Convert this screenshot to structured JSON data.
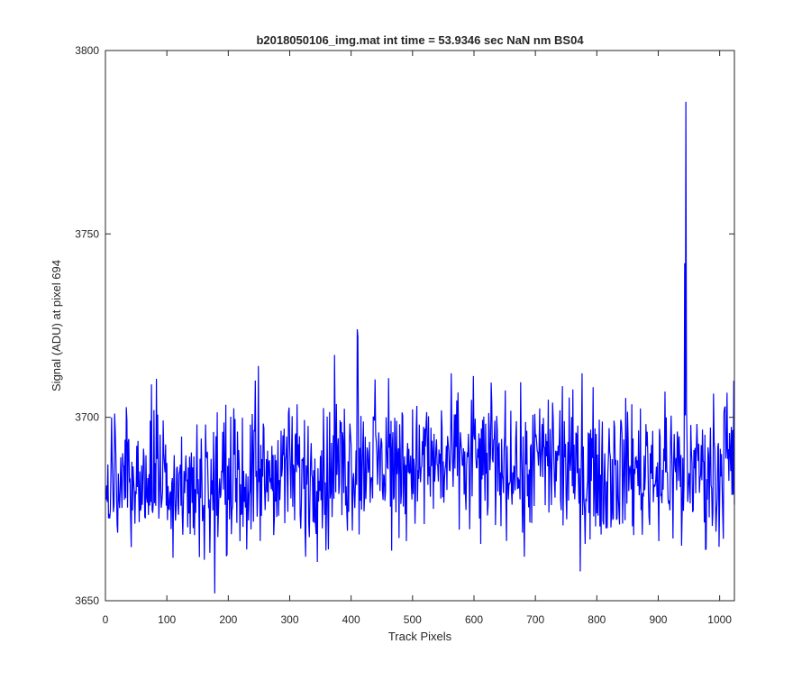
{
  "chart_data": {
    "type": "line",
    "title": "b2018050106_img.mat int time = 53.9346 sec  NaN nm BS04",
    "xlabel": "Track Pixels",
    "ylabel": "Signal (ADU) at pixel 694",
    "xlim": [
      0,
      1024
    ],
    "ylim": [
      3650,
      3800
    ],
    "xticks": [
      0,
      100,
      200,
      300,
      400,
      500,
      600,
      700,
      800,
      900,
      1000
    ],
    "yticks": [
      3650,
      3700,
      3750,
      3800
    ],
    "xtick_labels": [
      "0",
      "100",
      "200",
      "300",
      "400",
      "500",
      "600",
      "700",
      "800",
      "900",
      "1000"
    ],
    "ytick_labels": [
      "3650",
      "3700",
      "3750",
      "3800"
    ],
    "grid": false,
    "legend": "none",
    "series": [
      {
        "color": "#0000ff",
        "x_start": 1,
        "x_step": 1,
        "count": 1024,
        "baseline": [
          [
            1,
            3683
          ],
          [
            100,
            3683
          ],
          [
            200,
            3682
          ],
          [
            300,
            3684
          ],
          [
            400,
            3687
          ],
          [
            500,
            3688
          ],
          [
            600,
            3688
          ],
          [
            700,
            3687
          ],
          [
            800,
            3686
          ],
          [
            900,
            3686
          ],
          [
            1024,
            3686
          ]
        ],
        "noise_amplitude": 9,
        "features": [
          {
            "x": 75,
            "y": 3709
          },
          {
            "x": 178,
            "y": 3652
          },
          {
            "x": 249,
            "y": 3714
          },
          {
            "x": 326,
            "y": 3662
          },
          {
            "x": 363,
            "y": 3664
          },
          {
            "x": 373,
            "y": 3717
          },
          {
            "x": 410,
            "y": 3724
          },
          {
            "x": 411,
            "y": 3722
          },
          {
            "x": 682,
            "y": 3662
          },
          {
            "x": 943,
            "y": 3742
          },
          {
            "x": 945,
            "y": 3786
          },
          {
            "x": 946,
            "y": 3703
          },
          {
            "x": 938,
            "y": 3665
          }
        ]
      }
    ]
  }
}
